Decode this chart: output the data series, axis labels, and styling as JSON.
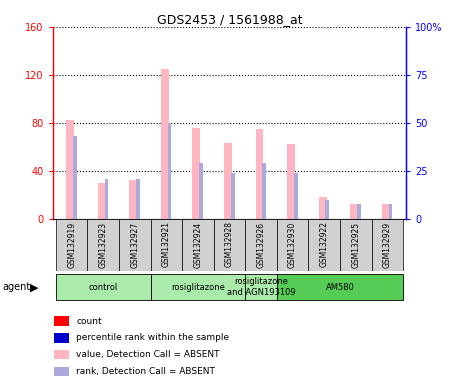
{
  "title": "GDS2453 / 1561988_at",
  "samples": [
    "GSM132919",
    "GSM132923",
    "GSM132927",
    "GSM132921",
    "GSM132924",
    "GSM132928",
    "GSM132926",
    "GSM132930",
    "GSM132922",
    "GSM132925",
    "GSM132929"
  ],
  "count_absent": [
    82,
    30,
    32,
    125,
    76,
    63,
    75,
    62,
    18,
    12,
    12
  ],
  "rank_absent": [
    43,
    21,
    21,
    50,
    29,
    24,
    29,
    24,
    10,
    8,
    8
  ],
  "agent_groups": [
    {
      "label": "control",
      "start": 0,
      "end": 3,
      "color": "#AAEAAA"
    },
    {
      "label": "rosiglitazone",
      "start": 3,
      "end": 6,
      "color": "#AAEAAA"
    },
    {
      "label": "rosiglitazone\nand AGN193109",
      "start": 6,
      "end": 7,
      "color": "#AAEAAA"
    },
    {
      "label": "AM580",
      "start": 7,
      "end": 11,
      "color": "#55CC55"
    }
  ],
  "ylim_left": [
    0,
    160
  ],
  "ylim_right": [
    0,
    100
  ],
  "yticks_left": [
    0,
    40,
    80,
    120,
    160
  ],
  "yticks_right": [
    0,
    25,
    50,
    75,
    100
  ],
  "ytick_labels_right": [
    "0",
    "25",
    "50",
    "75",
    "100%"
  ],
  "color_count": "#FF0000",
  "color_rank": "#0000CD",
  "color_absent_count": "#FFB6C1",
  "color_absent_rank": "#AAAADD",
  "bar_bg": "#D0D0D0",
  "legend_items": [
    {
      "color": "#FF0000",
      "label": "count"
    },
    {
      "color": "#0000CD",
      "label": "percentile rank within the sample"
    },
    {
      "color": "#FFB6C1",
      "label": "value, Detection Call = ABSENT"
    },
    {
      "color": "#AAAADD",
      "label": "rank, Detection Call = ABSENT"
    }
  ]
}
